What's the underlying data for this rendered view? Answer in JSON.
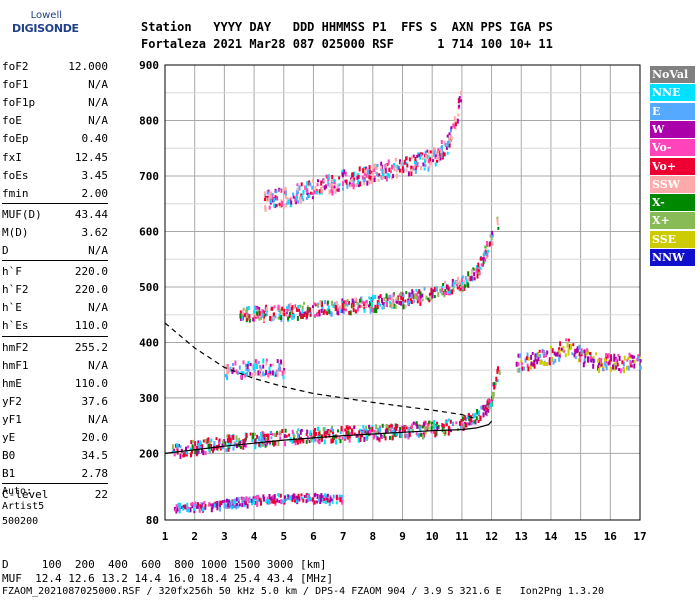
{
  "logo": {
    "line1": "Lowell",
    "line2": "DIGISONDE"
  },
  "header": {
    "line1": "Station   YYYY DAY   DDD HHMMSS P1  FFS S  AXN PPS IGA PS",
    "line2": "Fortaleza 2021 Mar28 087 025000 RSF      1 714 100 10+ 11"
  },
  "params": [
    {
      "key": "foF2",
      "value": "12.000"
    },
    {
      "key": "foF1",
      "value": "N/A"
    },
    {
      "key": "foF1p",
      "value": "N/A"
    },
    {
      "key": "foE",
      "value": "N/A"
    },
    {
      "key": "foEp",
      "value": "0.40"
    },
    {
      "key": "fxI",
      "value": "12.45"
    },
    {
      "key": "foEs",
      "value": "3.45"
    },
    {
      "key": "fmin",
      "value": "2.00"
    },
    {
      "key": "MUF(D)",
      "value": "43.44"
    },
    {
      "key": "M(D)",
      "value": "3.62"
    },
    {
      "key": "D",
      "value": "N/A"
    },
    {
      "key": "h`F",
      "value": "220.0"
    },
    {
      "key": "h`F2",
      "value": "220.0"
    },
    {
      "key": "h`E",
      "value": "N/A"
    },
    {
      "key": "h`Es",
      "value": "110.0"
    },
    {
      "key": "hmF2",
      "value": "255.2"
    },
    {
      "key": "hmF1",
      "value": "N/A"
    },
    {
      "key": "hmE",
      "value": "110.0"
    },
    {
      "key": "yF2",
      "value": "37.6"
    },
    {
      "key": "yF1",
      "value": "N/A"
    },
    {
      "key": "yE",
      "value": "20.0"
    },
    {
      "key": "B0",
      "value": "34.5"
    },
    {
      "key": "B1",
      "value": "2.78"
    },
    {
      "key": "C-level",
      "value": "22"
    }
  ],
  "autoscaling": {
    "line1": "Auto:",
    "line2": "Artist5",
    "line3": "500200"
  },
  "legend": [
    {
      "label": "NoVal",
      "color": "#808080"
    },
    {
      "label": "NNE",
      "color": "#00e0ff"
    },
    {
      "label": "E",
      "color": "#55aaff"
    },
    {
      "label": "W",
      "color": "#aa00aa"
    },
    {
      "label": "Vo-",
      "color": "#ff44bb"
    },
    {
      "label": "Vo+",
      "color": "#ee0033"
    },
    {
      "label": "SSW",
      "color": "#ffaaaa"
    },
    {
      "label": "X-",
      "color": "#008800"
    },
    {
      "label": "X+",
      "color": "#88bb55"
    },
    {
      "label": "SSE",
      "color": "#cccc00"
    },
    {
      "label": "NNW",
      "color": "#1010cc"
    }
  ],
  "footer": {
    "distance": "D     100  200  400  600  800 1000 1500 3000 [km]",
    "muf": "MUF  12.4 12.6 13.2 14.4 16.0 18.4 25.4 43.4 [MHz]",
    "info": "FZAOM_2021087025000.RSF / 320fx256h 50 kHz 5.0 km / DPS-4 FZAOM 904 / 3.9 S 321.6 E   Ion2Png 1.3.20"
  },
  "chart_data": {
    "type": "scatter",
    "xlim": [
      1,
      17
    ],
    "ylim": [
      80,
      900
    ],
    "xticks": [
      1,
      2,
      3,
      4,
      5,
      6,
      7,
      8,
      9,
      10,
      11,
      12,
      13,
      14,
      15,
      16,
      17
    ],
    "yticks": [
      80,
      200,
      300,
      400,
      500,
      600,
      700,
      800,
      900
    ],
    "grid": true,
    "traces": [
      {
        "name": "F2 trace",
        "type": "echo-band",
        "x": [
          1.2,
          2.5,
          4,
          6,
          8,
          10,
          11,
          11.5,
          11.9,
          12.1,
          12.3
        ],
        "y": [
          205,
          218,
          228,
          236,
          240,
          248,
          258,
          270,
          290,
          330,
          370
        ]
      },
      {
        "name": "F2 second hop",
        "type": "echo-band",
        "x": [
          3.5,
          5,
          7,
          9,
          10,
          11,
          11.5,
          12.2
        ],
        "y": [
          452,
          458,
          468,
          480,
          492,
          510,
          530,
          620
        ]
      },
      {
        "name": "F2 third hop",
        "type": "echo-band",
        "x": [
          4.3,
          5,
          6,
          7,
          8,
          9,
          10,
          10.5,
          11
        ],
        "y": [
          658,
          664,
          680,
          696,
          708,
          720,
          735,
          760,
          850
        ]
      },
      {
        "name": "Es trace",
        "type": "echo-band",
        "x": [
          1.3,
          2,
          3,
          4,
          5,
          6,
          7
        ],
        "y": [
          105,
          108,
          112,
          118,
          122,
          122,
          120
        ]
      },
      {
        "name": "Spread F",
        "type": "echo-band",
        "x": [
          12.8,
          13.5,
          14,
          14.5,
          15,
          15.5,
          16,
          16.5,
          17
        ],
        "y": [
          365,
          372,
          380,
          395,
          380,
          368,
          366,
          368,
          372
        ]
      },
      {
        "name": "Spread F upper",
        "type": "echo-band",
        "x": [
          3,
          4,
          5
        ],
        "y": [
          350,
          360,
          355
        ]
      }
    ],
    "profile": {
      "x": [
        1,
        3,
        5,
        7,
        9,
        10,
        11,
        11.5,
        11.9,
        12.0
      ],
      "y": [
        200,
        213,
        224,
        232,
        238,
        241,
        243,
        246,
        252,
        258
      ]
    },
    "profile_dashed": {
      "x": [
        1,
        2,
        3,
        4,
        5,
        6,
        7,
        8,
        9,
        10,
        11,
        11.5
      ],
      "y": [
        435,
        390,
        355,
        335,
        320,
        308,
        300,
        292,
        285,
        278,
        270,
        262
      ]
    }
  }
}
